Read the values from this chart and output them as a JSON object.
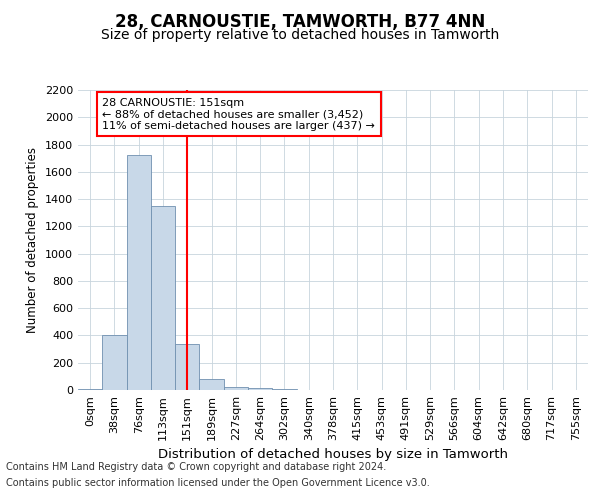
{
  "title": "28, CARNOUSTIE, TAMWORTH, B77 4NN",
  "subtitle": "Size of property relative to detached houses in Tamworth",
  "xlabel": "Distribution of detached houses by size in Tamworth",
  "ylabel": "Number of detached properties",
  "categories": [
    "0sqm",
    "38sqm",
    "76sqm",
    "113sqm",
    "151sqm",
    "189sqm",
    "227sqm",
    "264sqm",
    "302sqm",
    "340sqm",
    "378sqm",
    "415sqm",
    "453sqm",
    "491sqm",
    "529sqm",
    "566sqm",
    "604sqm",
    "642sqm",
    "680sqm",
    "717sqm",
    "755sqm"
  ],
  "values": [
    10,
    400,
    1720,
    1350,
    340,
    80,
    25,
    15,
    10,
    0,
    0,
    0,
    0,
    0,
    0,
    0,
    0,
    0,
    0,
    0,
    0
  ],
  "bar_color": "#c8d8e8",
  "bar_edge_color": "#7090b0",
  "red_line_index": 4,
  "ylim": [
    0,
    2200
  ],
  "yticks": [
    0,
    200,
    400,
    600,
    800,
    1000,
    1200,
    1400,
    1600,
    1800,
    2000,
    2200
  ],
  "annotation_title": "28 CARNOUSTIE: 151sqm",
  "annotation_line1": "← 88% of detached houses are smaller (3,452)",
  "annotation_line2": "11% of semi-detached houses are larger (437) →",
  "footer_line1": "Contains HM Land Registry data © Crown copyright and database right 2024.",
  "footer_line2": "Contains public sector information licensed under the Open Government Licence v3.0.",
  "bg_color": "#ffffff",
  "grid_color": "#c8d4dd",
  "title_fontsize": 12,
  "subtitle_fontsize": 10,
  "tick_fontsize": 8,
  "ylabel_fontsize": 8.5,
  "xlabel_fontsize": 9.5,
  "footer_fontsize": 7,
  "annotation_fontsize": 8
}
